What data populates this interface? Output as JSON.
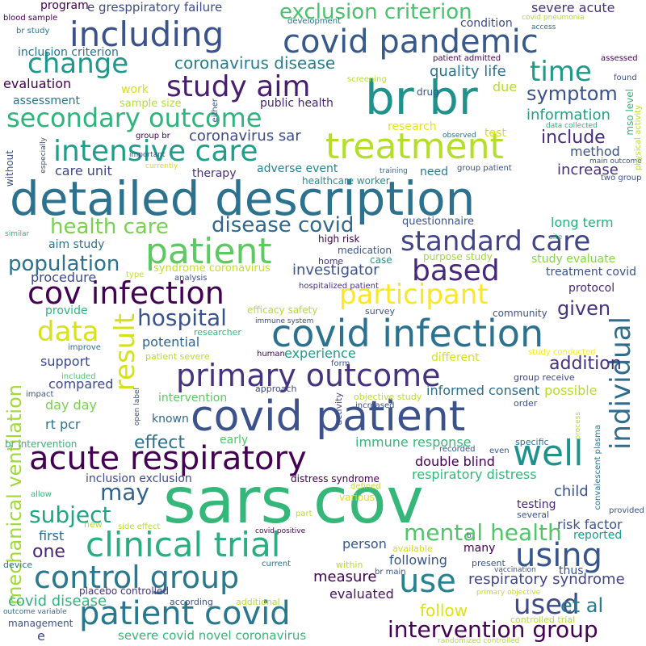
{
  "words": [
    {
      "text": "sars cov",
      "color": "#35b779"
    },
    {
      "text": "detailed description",
      "color": "#2c728e"
    },
    {
      "text": "covid patient",
      "color": "#3b528b"
    },
    {
      "text": "br br",
      "color": "#21918c"
    },
    {
      "text": "covid infection",
      "color": "#2c728e"
    },
    {
      "text": "clinical trial",
      "color": "#29af7f"
    },
    {
      "text": "acute respiratory",
      "color": "#440154"
    },
    {
      "text": "treatment",
      "color": "#b5de2b"
    },
    {
      "text": "covid pandemic",
      "color": "#38598c"
    },
    {
      "text": "patient covid",
      "color": "#2a788e"
    },
    {
      "text": "primary outcome",
      "color": "#46337f"
    },
    {
      "text": "control group",
      "color": "#2a788e"
    },
    {
      "text": "cov infection",
      "color": "#440154"
    },
    {
      "text": "including",
      "color": "#3b528b"
    },
    {
      "text": "patient",
      "color": "#5ec962"
    },
    {
      "text": "intensive care",
      "color": "#1f9e89"
    },
    {
      "text": "participant",
      "color": "#fde725"
    },
    {
      "text": "well",
      "color": "#21918c"
    },
    {
      "text": "study aim",
      "color": "#481f70"
    },
    {
      "text": "use",
      "color": "#26828e"
    },
    {
      "text": "using",
      "color": "#39568c"
    },
    {
      "text": "individual",
      "color": "#2f6c8e"
    },
    {
      "text": "secondary outcome",
      "color": "#2fb47c"
    },
    {
      "text": "standard care",
      "color": "#414487"
    },
    {
      "text": "change",
      "color": "#1f988b"
    },
    {
      "text": "exclusion criterion",
      "color": "#4ac16d"
    },
    {
      "text": "based",
      "color": "#482878"
    },
    {
      "text": "result",
      "color": "#d5e21a"
    },
    {
      "text": "time",
      "color": "#1f9a8a"
    },
    {
      "text": "used",
      "color": "#3e4989"
    },
    {
      "text": "health care",
      "color": "#7ad151"
    },
    {
      "text": "disease covid",
      "color": "#31688e"
    },
    {
      "text": "mental health",
      "color": "#52c569"
    },
    {
      "text": "mechanical ventilation",
      "color": "#a0da39"
    },
    {
      "text": "intervention group",
      "color": "#440154"
    },
    {
      "text": "population",
      "color": "#2c728e"
    },
    {
      "text": "data",
      "color": "#d8e219"
    },
    {
      "text": "hospital",
      "color": "#3b528b"
    },
    {
      "text": "may",
      "color": "#33638d"
    },
    {
      "text": "subject",
      "color": "#20a486"
    },
    {
      "text": "coronavirus disease",
      "color": "#277f8e"
    },
    {
      "text": "symptom",
      "color": "#3b528b"
    },
    {
      "text": "effect",
      "color": "#2c728e"
    },
    {
      "text": "et al",
      "color": "#2a788e"
    },
    {
      "text": "one",
      "color": "#482475"
    },
    {
      "text": "include",
      "color": "#472d7b"
    },
    {
      "text": "information",
      "color": "#1fa088"
    },
    {
      "text": "coronavirus sar",
      "color": "#3e4a89"
    },
    {
      "text": "respiratory syndrome",
      "color": "#404688"
    },
    {
      "text": "given",
      "color": "#46327e"
    },
    {
      "text": "addition",
      "color": "#46327e"
    },
    {
      "text": "quality life",
      "color": "#2c738e"
    },
    {
      "text": "investigator",
      "color": "#3b528b"
    },
    {
      "text": "measure",
      "color": "#440154"
    },
    {
      "text": "follow",
      "color": "#dde318"
    },
    {
      "text": "covid disease",
      "color": "#2fb47c"
    },
    {
      "text": "evaluation",
      "color": "#440154"
    },
    {
      "text": "increase",
      "color": "#472d7b"
    },
    {
      "text": "method",
      "color": "#3a548c"
    },
    {
      "text": "care unit",
      "color": "#3f4788"
    },
    {
      "text": "procedure",
      "color": "#3e4a89"
    },
    {
      "text": "child",
      "color": "#3b528b"
    },
    {
      "text": "first",
      "color": "#31688e"
    },
    {
      "text": "potential",
      "color": "#33638d"
    },
    {
      "text": "support",
      "color": "#3e4989"
    },
    {
      "text": "compared",
      "color": "#3e4989"
    },
    {
      "text": "experience",
      "color": "#1e9c89"
    },
    {
      "text": "risk factor",
      "color": "#3b528b"
    },
    {
      "text": "person",
      "color": "#38588c"
    },
    {
      "text": "respiratory distress",
      "color": "#35b779"
    },
    {
      "text": "double blind",
      "color": "#440154"
    },
    {
      "text": "immune response",
      "color": "#35b779"
    },
    {
      "text": "long term",
      "color": "#29af7f"
    },
    {
      "text": "treatment covid",
      "color": "#3b528b"
    },
    {
      "text": "protocol",
      "color": "#482878"
    },
    {
      "text": "study evaluate",
      "color": "#86d549"
    },
    {
      "text": "informed consent",
      "color": "#2e6e8e"
    },
    {
      "text": "possible",
      "color": "#b5de2b"
    },
    {
      "text": "intervention",
      "color": "#5ec962"
    },
    {
      "text": "day day",
      "color": "#7ad151"
    },
    {
      "text": "rt pcr",
      "color": "#2c728e"
    },
    {
      "text": "early",
      "color": "#52c569"
    },
    {
      "text": "known",
      "color": "#31688e"
    },
    {
      "text": "reported",
      "color": "#1f9a8a"
    },
    {
      "text": "testing",
      "color": "#482878"
    },
    {
      "text": "evaluated",
      "color": "#471365"
    },
    {
      "text": "following",
      "color": "#38588c"
    },
    {
      "text": "many",
      "color": "#440154"
    },
    {
      "text": "thus",
      "color": "#3b528b"
    },
    {
      "text": "severe covid novel coronavirus",
      "color": "#35b779"
    },
    {
      "text": "inclusion exclusion",
      "color": "#3e4a89"
    },
    {
      "text": "distress syndrome",
      "color": "#440154"
    },
    {
      "text": "adverse event",
      "color": "#26828e"
    },
    {
      "text": "healthcare worker",
      "color": "#21918c"
    },
    {
      "text": "need",
      "color": "#2a788e"
    },
    {
      "text": "therapy",
      "color": "#46327e"
    },
    {
      "text": "public health",
      "color": "#482475"
    },
    {
      "text": "assessment",
      "color": "#2c728e"
    },
    {
      "text": "sample size",
      "color": "#b5de2b"
    },
    {
      "text": "inclusion criterion",
      "color": "#2c728e"
    },
    {
      "text": "program",
      "color": "#440154"
    },
    {
      "text": "e gresppiratory failure",
      "color": "#3e4a89"
    },
    {
      "text": "severe acute",
      "color": "#46327e"
    },
    {
      "text": "condition",
      "color": "#3e4a89"
    },
    {
      "text": "research",
      "color": "#e5e419"
    },
    {
      "text": "test",
      "color": "#d5e21a"
    },
    {
      "text": "due",
      "color": "#b5de2b"
    },
    {
      "text": "drug",
      "color": "#3b528b"
    },
    {
      "text": "work",
      "color": "#d8e219"
    },
    {
      "text": "aim study",
      "color": "#2c728e"
    },
    {
      "text": "provide",
      "color": "#2fb47c"
    },
    {
      "text": "questionnaire",
      "color": "#3b528b"
    },
    {
      "text": "high risk",
      "color": "#440154"
    },
    {
      "text": "medication",
      "color": "#3b528b"
    },
    {
      "text": "case",
      "color": "#1f988b"
    },
    {
      "text": "home",
      "color": "#46327e"
    },
    {
      "text": "purpose study",
      "color": "#a0da39"
    },
    {
      "text": "hospitalized patient",
      "color": "#46327e"
    },
    {
      "text": "survey",
      "color": "#3b528b"
    },
    {
      "text": "community",
      "color": "#3b528b"
    },
    {
      "text": "different",
      "color": "#d5e21a"
    },
    {
      "text": "efficacy safety",
      "color": "#b5de2b"
    },
    {
      "text": "syndrome coronavirus",
      "color": "#c2df23"
    },
    {
      "text": "analysis",
      "color": "#3b528b"
    },
    {
      "text": "immune system",
      "color": "#3e4989"
    },
    {
      "text": "researcher",
      "color": "#35b779"
    },
    {
      "text": "patient severe",
      "color": "#b5de2b"
    },
    {
      "text": "improve",
      "color": "#2c728e"
    },
    {
      "text": "included",
      "color": "#52c569"
    },
    {
      "text": "impact",
      "color": "#3b528b"
    },
    {
      "text": "approach",
      "color": "#3e4989"
    },
    {
      "text": "objective study",
      "color": "#b5de2b"
    },
    {
      "text": "increased",
      "color": "#3b528b"
    },
    {
      "text": "order",
      "color": "#3b528b"
    },
    {
      "text": "group receive",
      "color": "#3e4989"
    },
    {
      "text": "study conducted",
      "color": "#fde725"
    },
    {
      "text": "human",
      "color": "#440154"
    },
    {
      "text": "form",
      "color": "#3b528b"
    },
    {
      "text": "specific",
      "color": "#2c728e"
    },
    {
      "text": "recorded",
      "color": "#3b528b"
    },
    {
      "text": "even",
      "color": "#3b528b"
    },
    {
      "text": "defined",
      "color": "#c2df23"
    },
    {
      "text": "various",
      "color": "#d5e21a"
    },
    {
      "text": "part",
      "color": "#b5de2b"
    },
    {
      "text": "side effect",
      "color": "#b5de2b"
    },
    {
      "text": "covid positive",
      "color": "#440154"
    },
    {
      "text": "current",
      "color": "#2c728e"
    },
    {
      "text": "available",
      "color": "#d5e21a"
    },
    {
      "text": "within",
      "color": "#b5de2b"
    },
    {
      "text": "present",
      "color": "#3b528b"
    },
    {
      "text": "vaccination",
      "color": "#3b528b"
    },
    {
      "text": "primary objective",
      "color": "#c2df23"
    },
    {
      "text": "according",
      "color": "#3b528b"
    },
    {
      "text": "additional",
      "color": "#b5de2b"
    },
    {
      "text": "placebo controlled",
      "color": "#46327e"
    },
    {
      "text": "outcome variable",
      "color": "#2c728e"
    },
    {
      "text": "management",
      "color": "#3b528b"
    },
    {
      "text": "controlled trial",
      "color": "#b5de2b"
    },
    {
      "text": "randomized controlled",
      "color": "#b5de2b"
    },
    {
      "text": "e",
      "color": "#3e4a89"
    },
    {
      "text": "br intervention",
      "color": "#35b779"
    },
    {
      "text": "allow",
      "color": "#35b779"
    },
    {
      "text": "new",
      "color": "#b5de2b"
    },
    {
      "text": "device",
      "color": "#2c728e"
    },
    {
      "text": "br main",
      "color": "#3b528b"
    },
    {
      "text": "several",
      "color": "#3b528b"
    },
    {
      "text": "provided",
      "color": "#3b528b"
    },
    {
      "text": "b",
      "color": "#3b528b"
    },
    {
      "text": "similar",
      "color": "#2fb47c"
    },
    {
      "text": "site",
      "color": "#2fb47c"
    },
    {
      "text": "found",
      "color": "#3b528b"
    },
    {
      "text": "assessed",
      "color": "#440154"
    },
    {
      "text": "access",
      "color": "#2c728e"
    },
    {
      "text": "covid pneumonia",
      "color": "#b5de2b"
    },
    {
      "text": "patient admitted",
      "color": "#440154"
    },
    {
      "text": "development",
      "color": "#2c728e"
    },
    {
      "text": "blood sample",
      "color": "#440154"
    },
    {
      "text": "br study",
      "color": "#2c728e"
    },
    {
      "text": "screening",
      "color": "#b5de2b"
    },
    {
      "text": "observed",
      "color": "#2c728e"
    },
    {
      "text": "data collected",
      "color": "#2fb47c"
    },
    {
      "text": "main outcome",
      "color": "#3b528b"
    },
    {
      "text": "two group",
      "color": "#3b528b"
    },
    {
      "text": "group patient",
      "color": "#3b528b"
    },
    {
      "text": "training",
      "color": "#2c728e"
    },
    {
      "text": "group br",
      "color": "#440154"
    },
    {
      "text": "currently",
      "color": "#d5e21a"
    },
    {
      "text": "important",
      "color": "#3b528b"
    },
    {
      "text": "type",
      "color": "#c2df23"
    },
    {
      "text": "open label",
      "color": "#3b528b"
    },
    {
      "text": "activity",
      "color": "#3e4989"
    },
    {
      "text": "process",
      "color": "#b5de2b"
    },
    {
      "text": "convalescent plasma",
      "color": "#2c728e"
    },
    {
      "text": "mso level",
      "color": "#2fb47c"
    },
    {
      "text": "physical activity",
      "color": "#b5de2b"
    },
    {
      "text": "without",
      "color": "#3b528b"
    },
    {
      "text": "especially",
      "color": "#3b528b"
    },
    {
      "text": "either",
      "color": "#3b528b"
    }
  ]
}
